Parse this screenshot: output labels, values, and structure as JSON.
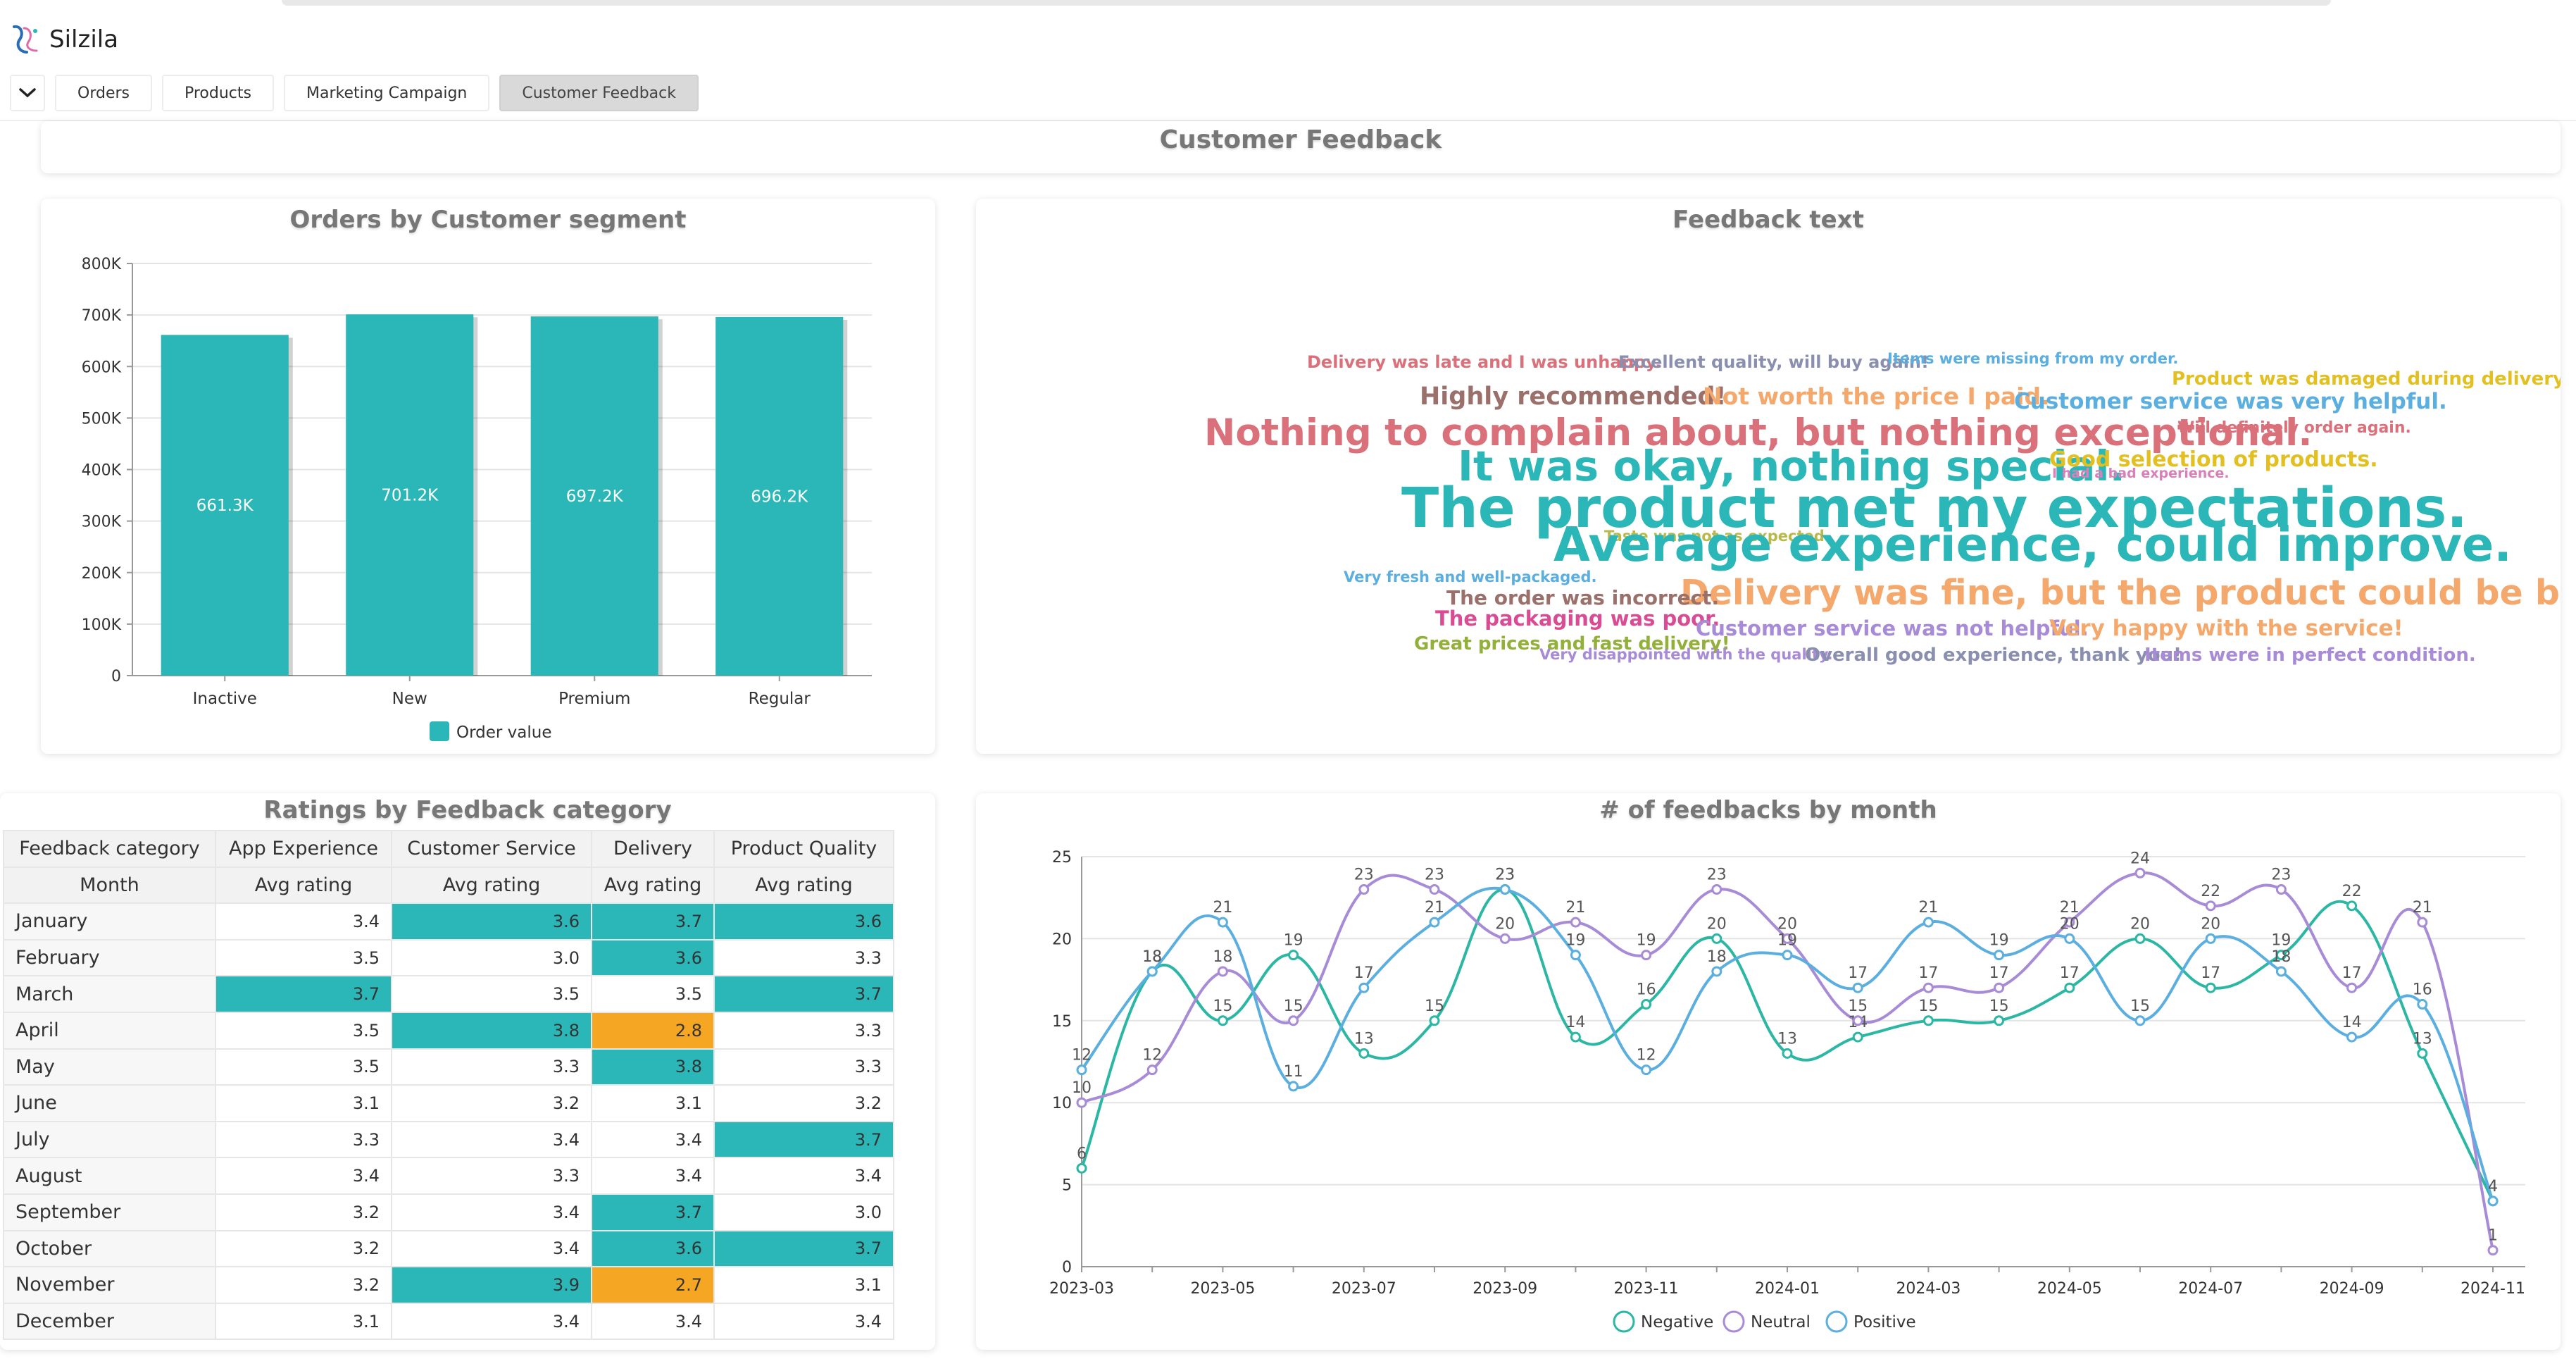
{
  "app": {
    "name": "Silzila"
  },
  "tabs": [
    {
      "label": "Orders"
    },
    {
      "label": "Products"
    },
    {
      "label": "Marketing Campaign"
    },
    {
      "label": "Customer Feedback"
    }
  ],
  "page_title": "Customer Feedback",
  "colors": {
    "accent": "#2bb7b8",
    "low": "#f5a623",
    "negative": "#2bb7a4",
    "neutral": "#a88bd6",
    "positive": "#5aaee0"
  },
  "chart_data": [
    {
      "type": "bar",
      "title": "Orders by Customer segment",
      "categories": [
        "Inactive",
        "New",
        "Premium",
        "Regular"
      ],
      "series": [
        {
          "name": "Order value",
          "values": [
            661300,
            701200,
            697200,
            696200
          ]
        }
      ],
      "data_labels": [
        "661.3K",
        "701.2K",
        "697.2K",
        "696.2K"
      ],
      "ylim": [
        0,
        800000
      ],
      "yticks": [
        0,
        100000,
        200000,
        300000,
        400000,
        500000,
        600000,
        700000,
        800000
      ],
      "ytick_labels": [
        "0",
        "100K",
        "200K",
        "300K",
        "400K",
        "500K",
        "600K",
        "700K",
        "800K"
      ],
      "grid": true,
      "legend": "bottom"
    },
    {
      "type": "wordcloud",
      "title": "Feedback text",
      "words": [
        {
          "text": "Delivery was late and I was unhappy.",
          "size": 24,
          "color": "#d9707a"
        },
        {
          "text": "Excellent quality, will buy again!",
          "size": 24,
          "color": "#8a8fb0"
        },
        {
          "text": "Items were missing from my order.",
          "size": 21,
          "color": "#5aaee0"
        },
        {
          "text": "Product was damaged during delivery.",
          "size": 26,
          "color": "#e3c021"
        },
        {
          "text": "Highly recommended!",
          "size": 35,
          "color": "#9b6f6a"
        },
        {
          "text": "Not worth the price I paid.",
          "size": 33,
          "color": "#f4a86c"
        },
        {
          "text": "Customer service was very helpful.",
          "size": 31,
          "color": "#5aaee0"
        },
        {
          "text": "Nothing to complain about, but nothing exceptional.",
          "size": 53,
          "color": "#d9707a"
        },
        {
          "text": "Will definitely order again.",
          "size": 22,
          "color": "#d9707a"
        },
        {
          "text": "It was okay, nothing special.",
          "size": 59,
          "color": "#2bb7b8"
        },
        {
          "text": "Good selection of products.",
          "size": 30,
          "color": "#e3c021"
        },
        {
          "text": "I had a bad experience.",
          "size": 19,
          "color": "#d980b8"
        },
        {
          "text": "The product met my expectations.",
          "size": 78,
          "color": "#2bb7b8"
        },
        {
          "text": "Taste was not as expected.",
          "size": 21,
          "color": "#b9b94a"
        },
        {
          "text": "Average experience, could improve.",
          "size": 67,
          "color": "#2bb7b8"
        },
        {
          "text": "Very fresh and well-packaged.",
          "size": 21,
          "color": "#5aaee0"
        },
        {
          "text": "Delivery was fine, but the product could be better.",
          "size": 49,
          "color": "#f4a86c"
        },
        {
          "text": "The order was incorrect.",
          "size": 28,
          "color": "#9b6f6a"
        },
        {
          "text": "The packaging was poor.",
          "size": 29,
          "color": "#d94c93"
        },
        {
          "text": "Customer service was not helpful.",
          "size": 29,
          "color": "#a88bd6"
        },
        {
          "text": "Very happy with the service!",
          "size": 31,
          "color": "#f4a86c"
        },
        {
          "text": "Great prices and fast delivery!",
          "size": 26,
          "color": "#93b03a"
        },
        {
          "text": "Very disappointed with the quality.",
          "size": 21,
          "color": "#a88bd6"
        },
        {
          "text": "Overall good experience, thank you!",
          "size": 26,
          "color": "#8a8fb0"
        },
        {
          "text": "Items were in perfect condition.",
          "size": 26,
          "color": "#a88bd6"
        }
      ]
    },
    {
      "type": "table",
      "title": "Ratings by Feedback category",
      "row_header": "Feedback category",
      "row_subheader": "Month",
      "columns": [
        "App Experience",
        "Customer Service",
        "Delivery",
        "Product Quality"
      ],
      "measure": "Avg rating",
      "rows": [
        "January",
        "February",
        "March",
        "April",
        "May",
        "June",
        "July",
        "August",
        "September",
        "October",
        "November",
        "December"
      ],
      "values": [
        [
          "3.4",
          "3.6",
          "3.7",
          "3.6"
        ],
        [
          "3.5",
          "3.0",
          "3.6",
          "3.3"
        ],
        [
          "3.7",
          "3.5",
          "3.5",
          "3.7"
        ],
        [
          "3.5",
          "3.8",
          "2.8",
          "3.3"
        ],
        [
          "3.5",
          "3.3",
          "3.8",
          "3.3"
        ],
        [
          "3.1",
          "3.2",
          "3.1",
          "3.2"
        ],
        [
          "3.3",
          "3.4",
          "3.4",
          "3.7"
        ],
        [
          "3.4",
          "3.3",
          "3.4",
          "3.4"
        ],
        [
          "3.2",
          "3.4",
          "3.7",
          "3.0"
        ],
        [
          "3.2",
          "3.4",
          "3.6",
          "3.7"
        ],
        [
          "3.2",
          "3.9",
          "2.7",
          "3.1"
        ],
        [
          "3.1",
          "3.4",
          "3.4",
          "3.4"
        ]
      ],
      "highlight": [
        [
          "",
          "hi",
          "hi",
          "hi"
        ],
        [
          "",
          "",
          "hi",
          ""
        ],
        [
          "hi",
          "",
          "",
          "hi"
        ],
        [
          "",
          "hi",
          "lo",
          ""
        ],
        [
          "",
          "",
          "hi",
          ""
        ],
        [
          "",
          "",
          "",
          ""
        ],
        [
          "",
          "",
          "",
          "hi"
        ],
        [
          "",
          "",
          "",
          ""
        ],
        [
          "",
          "",
          "hi",
          ""
        ],
        [
          "",
          "",
          "hi",
          "hi"
        ],
        [
          "",
          "hi",
          "lo",
          ""
        ],
        [
          "",
          "",
          "",
          ""
        ]
      ]
    },
    {
      "type": "line",
      "title": "# of feedbacks by month",
      "x": [
        "2023-03",
        "2023-04",
        "2023-05",
        "2023-06",
        "2023-07",
        "2023-08",
        "2023-09",
        "2023-10",
        "2023-11",
        "2023-12",
        "2024-01",
        "2024-02",
        "2024-03",
        "2024-04",
        "2024-05",
        "2024-06",
        "2024-07",
        "2024-08",
        "2024-09",
        "2024-10",
        "2024-11"
      ],
      "xtick_labels": [
        "2023-03",
        "2023-05",
        "2023-07",
        "2023-09",
        "2023-11",
        "2024-01",
        "2024-03",
        "2024-05",
        "2024-07",
        "2024-09",
        "2024-11"
      ],
      "series": [
        {
          "name": "Negative",
          "values": [
            6,
            18,
            15,
            19,
            13,
            15,
            23,
            14,
            16,
            20,
            13,
            14,
            15,
            15,
            17,
            20,
            17,
            19,
            22,
            13,
            4
          ]
        },
        {
          "name": "Neutral",
          "values": [
            10,
            12,
            18,
            15,
            23,
            23,
            20,
            21,
            19,
            23,
            20,
            15,
            17,
            17,
            21,
            24,
            22,
            23,
            17,
            21,
            1
          ]
        },
        {
          "name": "Positive",
          "values": [
            12,
            18,
            21,
            11,
            17,
            21,
            23,
            19,
            12,
            18,
            19,
            17,
            21,
            19,
            20,
            15,
            20,
            18,
            14,
            16,
            4
          ]
        }
      ],
      "ylim": [
        0,
        25
      ],
      "yticks": [
        0,
        5,
        10,
        15,
        20,
        25
      ],
      "grid": true,
      "legend": "bottom"
    }
  ]
}
